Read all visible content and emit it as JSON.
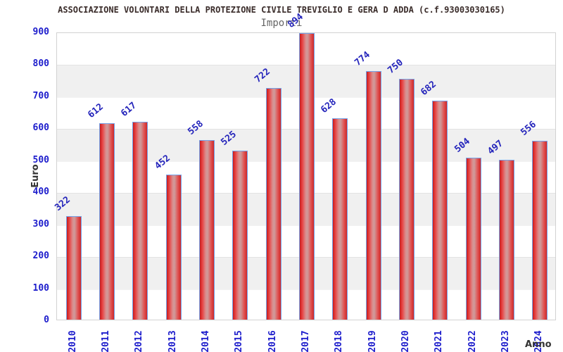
{
  "header": {
    "title": "ASSOCIAZIONE VOLONTARI DELLA PROTEZIONE CIVILE TREVIGLIO E GERA D ADDA (c.f.93003030165)",
    "subtitle": "Importi"
  },
  "chart_data": {
    "type": "bar",
    "title": "ASSOCIAZIONE VOLONTARI DELLA PROTEZIONE CIVILE TREVIGLIO E GERA D ADDA (c.f.93003030165)",
    "subtitle": "Importi",
    "categories": [
      "2010",
      "2011",
      "2012",
      "2013",
      "2014",
      "2015",
      "2016",
      "2017",
      "2018",
      "2019",
      "2020",
      "2021",
      "2022",
      "2023",
      "2024"
    ],
    "values": [
      322,
      612,
      617,
      452,
      558,
      525,
      722,
      894,
      628,
      774,
      750,
      682,
      504,
      497,
      556
    ],
    "xlabel": "Anno",
    "ylabel": "Euro",
    "ylim": [
      0,
      900
    ],
    "ytick_step": 100,
    "yticks": [
      0,
      100,
      200,
      300,
      400,
      500,
      600,
      700,
      800,
      900
    ],
    "grid": true,
    "legend_position": "none",
    "band_fill_alternating": true,
    "colors": {
      "bar_fill": "#e03030",
      "bar_fill_highlight": "#d99494",
      "bar_border": "#74a2e8",
      "tick_label": "#1d1dcc",
      "value_label": "#2424bb",
      "band_gray": "#f0f0f0",
      "plot_border": "#d2d2d2",
      "title_color": "#3a2c2a",
      "subtitle_color": "#666666",
      "axis_title_color": "#333333"
    }
  }
}
